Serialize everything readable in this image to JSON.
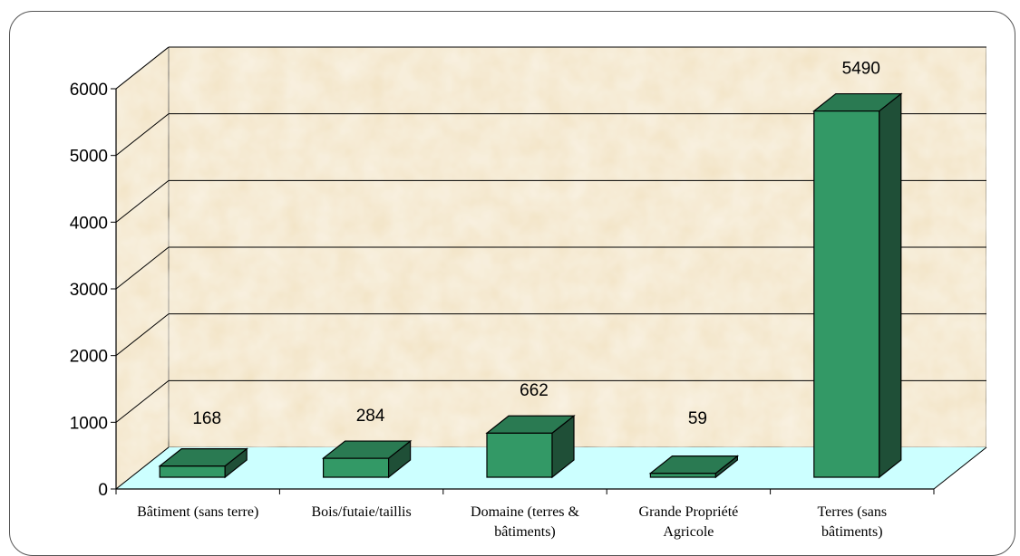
{
  "chart_data": {
    "type": "bar",
    "title": "",
    "xlabel": "",
    "ylabel": "",
    "categories": [
      [
        "Bâtiment (sans terre)"
      ],
      [
        "Bois/futaie/taillis"
      ],
      [
        "Domaine (terres &",
        "bâtiments)"
      ],
      [
        "Grande Propriété",
        "Agricole"
      ],
      [
        "Terres (sans",
        "bâtiments)"
      ]
    ],
    "values": [
      168,
      284,
      662,
      59,
      5490
    ],
    "data_labels": [
      "168",
      "284",
      "662",
      "59",
      "5490"
    ],
    "yticks": [
      "0",
      "1000",
      "2000",
      "3000",
      "4000",
      "5000",
      "6000"
    ],
    "ylim": [
      0,
      6000
    ],
    "grid": true,
    "legend": false,
    "colors": {
      "bar_front": "#339966",
      "bar_top": "#2a7a52",
      "bar_side": "#1f4f37",
      "floor": "#ccffff",
      "wall": "#f2e3c4",
      "gridline": "#000000"
    }
  }
}
